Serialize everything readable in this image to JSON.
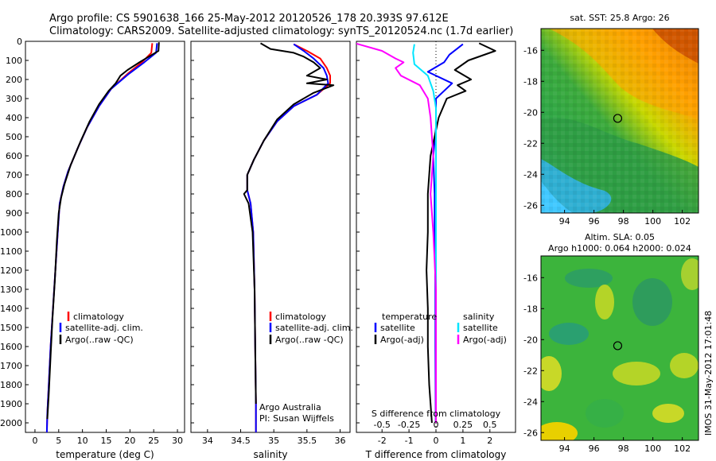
{
  "header": {
    "line1": "Argo profile: CS 5901638_166 25-May-2012 20120526_178 20.393S 97.612E",
    "line2": "Climatology: CARS2009. Satellite-adjusted climatology: synTS_20120524.nc (1.7d earlier)"
  },
  "colors": {
    "climatology": "#ff0000",
    "satellite": "#0000ff",
    "argo": "#000000",
    "sat_salinity": "#00e5ff",
    "argo_adj_salinity": "#ff00ff"
  },
  "chart_data": [
    {
      "type": "line",
      "xlabel": "temperature (deg C)",
      "xticks": [
        0,
        5,
        10,
        15,
        20,
        25,
        30
      ],
      "xlim": [
        -2,
        31.5
      ],
      "ylim": [
        0,
        2050
      ],
      "yticks": [
        0,
        100,
        200,
        300,
        400,
        500,
        600,
        700,
        800,
        900,
        1000,
        1100,
        1200,
        1300,
        1400,
        1500,
        1600,
        1700,
        1800,
        1900,
        2000
      ],
      "legend": [
        "climatology",
        "satellite-adj. clim.",
        "Argo(..raw -QC)"
      ],
      "series": [
        {
          "name": "climatology",
          "color": "#ff0000",
          "points": [
            [
              24.7,
              10
            ],
            [
              24.5,
              60
            ],
            [
              22.5,
              110
            ],
            [
              19.5,
              170
            ],
            [
              16,
              250
            ],
            [
              13.5,
              340
            ],
            [
              11,
              450
            ],
            [
              9,
              560
            ],
            [
              7,
              680
            ],
            [
              6,
              760
            ],
            [
              5.2,
              850
            ],
            [
              4.8,
              1000
            ],
            [
              4.3,
              1200
            ],
            [
              3.8,
              1400
            ],
            [
              3.3,
              1600
            ],
            [
              2.9,
              1800
            ],
            [
              2.6,
              1950
            ],
            [
              2.5,
              2050
            ]
          ]
        },
        {
          "name": "satellite-adj. clim.",
          "color": "#0000ff",
          "points": [
            [
              25.7,
              10
            ],
            [
              25.5,
              60
            ],
            [
              23,
              110
            ],
            [
              19.8,
              170
            ],
            [
              16,
              250
            ],
            [
              13.5,
              340
            ],
            [
              11,
              450
            ],
            [
              9,
              560
            ],
            [
              7,
              680
            ],
            [
              6,
              760
            ],
            [
              5.2,
              850
            ],
            [
              4.8,
              1000
            ],
            [
              4.3,
              1200
            ],
            [
              3.8,
              1400
            ],
            [
              3.3,
              1600
            ],
            [
              2.9,
              1800
            ],
            [
              2.6,
              1950
            ],
            [
              2.5,
              2050
            ]
          ]
        },
        {
          "name": "Argo(..raw -QC)",
          "color": "#000000",
          "points": [
            [
              26.1,
              5
            ],
            [
              26,
              50
            ],
            [
              24,
              80
            ],
            [
              22,
              110
            ],
            [
              19.5,
              150
            ],
            [
              18,
              180
            ],
            [
              17,
              220
            ],
            [
              15.5,
              260
            ],
            [
              13.5,
              330
            ],
            [
              11.5,
              420
            ],
            [
              9.5,
              530
            ],
            [
              7.5,
              650
            ],
            [
              6.2,
              750
            ],
            [
              5.5,
              820
            ],
            [
              5,
              900
            ],
            [
              4.6,
              1050
            ],
            [
              4.2,
              1250
            ],
            [
              3.7,
              1450
            ],
            [
              3.3,
              1650
            ],
            [
              2.9,
              1850
            ],
            [
              2.6,
              1980
            ]
          ]
        }
      ]
    },
    {
      "type": "line",
      "xlabel": "salinity",
      "xticks": [
        34,
        34.5,
        35,
        35.5,
        36
      ],
      "xlim": [
        33.75,
        36.15
      ],
      "ylim": [
        0,
        2050
      ],
      "legend": [
        "climatology",
        "satellite-adj. clim.",
        "Argo(..raw -QC)"
      ],
      "annotation": [
        "Argo Australia",
        "PI: Susan Wijffels"
      ],
      "series": [
        {
          "name": "climatology",
          "color": "#ff0000",
          "points": [
            [
              35.3,
              15
            ],
            [
              35.5,
              50
            ],
            [
              35.7,
              90
            ],
            [
              35.8,
              140
            ],
            [
              35.85,
              180
            ],
            [
              35.85,
              220
            ],
            [
              35.65,
              280
            ],
            [
              35.3,
              340
            ],
            [
              35.05,
              420
            ],
            [
              34.85,
              520
            ],
            [
              34.7,
              620
            ],
            [
              34.6,
              700
            ],
            [
              34.6,
              780
            ],
            [
              34.65,
              850
            ],
            [
              34.69,
              1000
            ],
            [
              34.71,
              1300
            ],
            [
              34.72,
              1600
            ],
            [
              34.73,
              1900
            ],
            [
              34.73,
              2050
            ]
          ]
        },
        {
          "name": "satellite-adj. clim.",
          "color": "#0000ff",
          "points": [
            [
              35.3,
              15
            ],
            [
              35.45,
              50
            ],
            [
              35.6,
              90
            ],
            [
              35.75,
              140
            ],
            [
              35.8,
              180
            ],
            [
              35.82,
              220
            ],
            [
              35.65,
              280
            ],
            [
              35.3,
              340
            ],
            [
              35.05,
              420
            ],
            [
              34.85,
              520
            ],
            [
              34.7,
              620
            ],
            [
              34.6,
              700
            ],
            [
              34.6,
              780
            ],
            [
              34.65,
              850
            ],
            [
              34.69,
              1000
            ],
            [
              34.71,
              1300
            ],
            [
              34.72,
              1600
            ],
            [
              34.73,
              1900
            ],
            [
              34.73,
              2050
            ]
          ]
        },
        {
          "name": "Argo(..raw -QC)",
          "color": "#000000",
          "points": [
            [
              34.8,
              10
            ],
            [
              34.95,
              40
            ],
            [
              35.3,
              60
            ],
            [
              35.45,
              80
            ],
            [
              35.6,
              110
            ],
            [
              35.7,
              140
            ],
            [
              35.5,
              180
            ],
            [
              35.8,
              200
            ],
            [
              35.5,
              220
            ],
            [
              35.9,
              230
            ],
            [
              35.6,
              270
            ],
            [
              35.3,
              330
            ],
            [
              35.05,
              410
            ],
            [
              34.85,
              520
            ],
            [
              34.7,
              620
            ],
            [
              34.6,
              700
            ],
            [
              34.6,
              780
            ],
            [
              34.55,
              800
            ],
            [
              34.62,
              850
            ],
            [
              34.68,
              1000
            ],
            [
              34.71,
              1300
            ],
            [
              34.72,
              1600
            ],
            [
              34.73,
              1900
            ]
          ]
        }
      ]
    },
    {
      "type": "line",
      "xlabel": "T difference from climatology",
      "xlabel2": "S difference from climatology",
      "xticks": [
        -2,
        -1,
        0,
        1,
        2
      ],
      "xticks2": [
        "-0.5",
        "-0.25",
        "0",
        "0.25",
        "0.5"
      ],
      "xlim": [
        -2.95,
        2.95
      ],
      "ylim": [
        0,
        2050
      ],
      "legend_headers": [
        "temperature",
        "salinity"
      ],
      "legend": [
        "satellite",
        "Argo(-adj)",
        "satellite",
        "Argo(-adj)"
      ],
      "series": [
        {
          "name": "satellite",
          "color": "#0000ff",
          "points": [
            [
              1,
              15
            ],
            [
              0.5,
              70
            ],
            [
              0.3,
              110
            ],
            [
              -0.3,
              160
            ],
            [
              0.6,
              220
            ],
            [
              0,
              300
            ],
            [
              0,
              450
            ],
            [
              -0.1,
              600
            ],
            [
              -0.05,
              800
            ],
            [
              -0.05,
              1000
            ],
            [
              -0.02,
              1300
            ],
            [
              -0.02,
              1600
            ],
            [
              -0.01,
              2000
            ]
          ]
        },
        {
          "name": "Argo(-adj)",
          "color": "#000000",
          "points": [
            [
              1.6,
              10
            ],
            [
              2.2,
              50
            ],
            [
              1.2,
              100
            ],
            [
              0.7,
              150
            ],
            [
              1.3,
              200
            ],
            [
              0.8,
              230
            ],
            [
              1.1,
              260
            ],
            [
              0.4,
              300
            ],
            [
              0.1,
              400
            ],
            [
              -0.2,
              600
            ],
            [
              -0.3,
              800
            ],
            [
              -0.3,
              1000
            ],
            [
              -0.35,
              1200
            ],
            [
              -0.3,
              1400
            ],
            [
              -0.3,
              1600
            ],
            [
              -0.25,
              1800
            ],
            [
              -0.15,
              2000
            ]
          ]
        },
        {
          "name": "satellite (S)",
          "color": "#00e5ff",
          "points": [
            [
              -0.8,
              15
            ],
            [
              -0.85,
              60
            ],
            [
              -0.8,
              120
            ],
            [
              -0.3,
              180
            ],
            [
              -0.1,
              260
            ],
            [
              0,
              350
            ],
            [
              0,
              500
            ],
            [
              0,
              700
            ],
            [
              0,
              900
            ],
            [
              0,
              1100
            ],
            [
              0,
              1400
            ],
            [
              0,
              1700
            ],
            [
              0,
              2000
            ]
          ]
        },
        {
          "name": "Argo(-adj) (S)",
          "color": "#ff00ff",
          "points": [
            [
              -3,
              10
            ],
            [
              -2,
              50
            ],
            [
              -1.5,
              90
            ],
            [
              -1.2,
              110
            ],
            [
              -1.5,
              140
            ],
            [
              -1.3,
              180
            ],
            [
              -0.6,
              230
            ],
            [
              -0.3,
              300
            ],
            [
              -0.2,
              400
            ],
            [
              -0.1,
              600
            ],
            [
              -0.2,
              800
            ],
            [
              -0.1,
              1000
            ],
            [
              0,
              1300
            ],
            [
              0,
              1600
            ],
            [
              0,
              2000
            ]
          ]
        }
      ]
    },
    {
      "type": "heatmap",
      "title": "sat. SST: 25.8  Argo: 26",
      "xticks": [
        94,
        96,
        98,
        100,
        102
      ],
      "yticks": [
        -16,
        -18,
        -20,
        -22,
        -24,
        -26
      ],
      "xlim": [
        92.4,
        103.1
      ],
      "ylim": [
        -26.5,
        -14.6
      ],
      "marker": {
        "lon": 97.612,
        "lat": -20.393
      }
    },
    {
      "type": "heatmap",
      "title": "Altim. SLA: 0.05",
      "subtitle": "Argo h1000: 0.064 h2000: 0.024",
      "xticks": [
        94,
        96,
        98,
        100,
        102
      ],
      "yticks": [
        -16,
        -18,
        -20,
        -22,
        -24,
        -26
      ],
      "xlim": [
        92.4,
        103.1
      ],
      "ylim": [
        -26.5,
        -14.6
      ],
      "marker": {
        "lon": 97.612,
        "lat": -20.393
      }
    }
  ],
  "side_label": "IMOS 31-May-2012 17:01:48"
}
